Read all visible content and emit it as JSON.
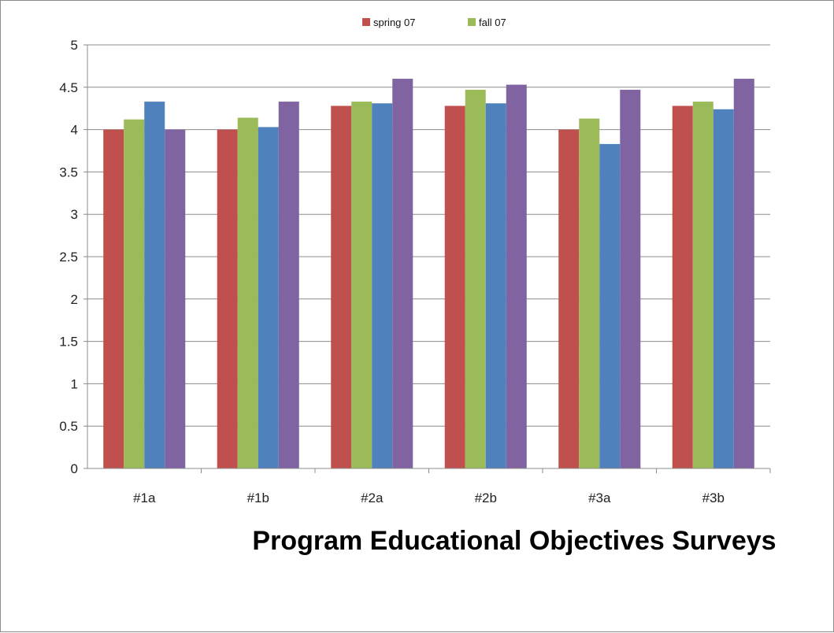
{
  "chart_data": {
    "type": "bar",
    "title": "Program Educational Objectives Surveys",
    "xlabel": "",
    "ylabel": "",
    "categories": [
      "#1a",
      "#1b",
      "#2a",
      "#2b",
      "#3a",
      "#3b"
    ],
    "series": [
      {
        "name": "spring 07",
        "color": "#c0504d",
        "values": [
          4.0,
          4.0,
          4.28,
          4.28,
          4.0,
          4.28
        ]
      },
      {
        "name": "fall 07",
        "color": "#9bbb59",
        "values": [
          4.12,
          4.14,
          4.33,
          4.47,
          4.13,
          4.33
        ]
      },
      {
        "name": "",
        "color": "#4f81bd",
        "values": [
          4.33,
          4.03,
          4.31,
          4.31,
          3.83,
          4.24
        ]
      },
      {
        "name": "",
        "color": "#8064a2",
        "values": [
          4.0,
          4.33,
          4.6,
          4.53,
          4.47,
          4.6
        ]
      }
    ],
    "ylim": [
      0,
      5
    ],
    "yticks": [
      "0",
      "0.5",
      "1",
      "1.5",
      "2",
      "2.5",
      "3",
      "3.5",
      "4",
      "4.5",
      "5"
    ],
    "grid": true,
    "legend_position": "top"
  }
}
